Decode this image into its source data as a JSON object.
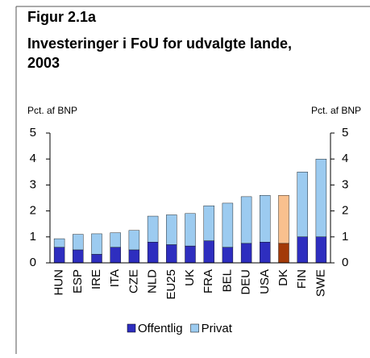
{
  "chart_data": {
    "type": "stacked_bar",
    "figure_label": "Figur 2.1a",
    "title": "Investeringer i FoU for udvalgte lande, 2003",
    "ylabel": "Pct. af BNP",
    "y2label": "Pct. af BNP",
    "categories": [
      "HUN",
      "ESP",
      "IRE",
      "ITA",
      "CZE",
      "NLD",
      "EU25",
      "UK",
      "FRA",
      "BEL",
      "DEU",
      "USA",
      "DK",
      "FIN",
      "SWE"
    ],
    "series": [
      {
        "name": "Offentlig",
        "color": "#2e2ebf",
        "colors": [
          "#2e2ebf",
          "#2e2ebf",
          "#2e2ebf",
          "#2e2ebf",
          "#2e2ebf",
          "#2e2ebf",
          "#2e2ebf",
          "#2e2ebf",
          "#2e2ebf",
          "#2e2ebf",
          "#2e2ebf",
          "#2e2ebf",
          "#a33a08",
          "#2e2ebf",
          "#2e2ebf"
        ],
        "values": [
          0.6,
          0.5,
          0.33,
          0.6,
          0.5,
          0.8,
          0.7,
          0.65,
          0.85,
          0.6,
          0.75,
          0.8,
          0.75,
          1.0,
          1.0
        ]
      },
      {
        "name": "Privat",
        "color": "#9ccbf0",
        "colors": [
          "#9ccbf0",
          "#9ccbf0",
          "#9ccbf0",
          "#9ccbf0",
          "#9ccbf0",
          "#9ccbf0",
          "#9ccbf0",
          "#9ccbf0",
          "#9ccbf0",
          "#9ccbf0",
          "#9ccbf0",
          "#9ccbf0",
          "#f9c08e",
          "#9ccbf0",
          "#9ccbf0"
        ],
        "values": [
          0.33,
          0.6,
          0.79,
          0.56,
          0.75,
          1.0,
          1.15,
          1.25,
          1.35,
          1.7,
          1.8,
          1.8,
          1.85,
          2.5,
          3.0
        ]
      }
    ],
    "ylim": [
      0,
      5
    ],
    "yticks": [
      0,
      1,
      2,
      3,
      4,
      5
    ],
    "y2lim": [
      0,
      5
    ],
    "y2ticks": [
      0,
      1,
      2,
      3,
      4,
      5
    ],
    "legend": "bottom"
  }
}
